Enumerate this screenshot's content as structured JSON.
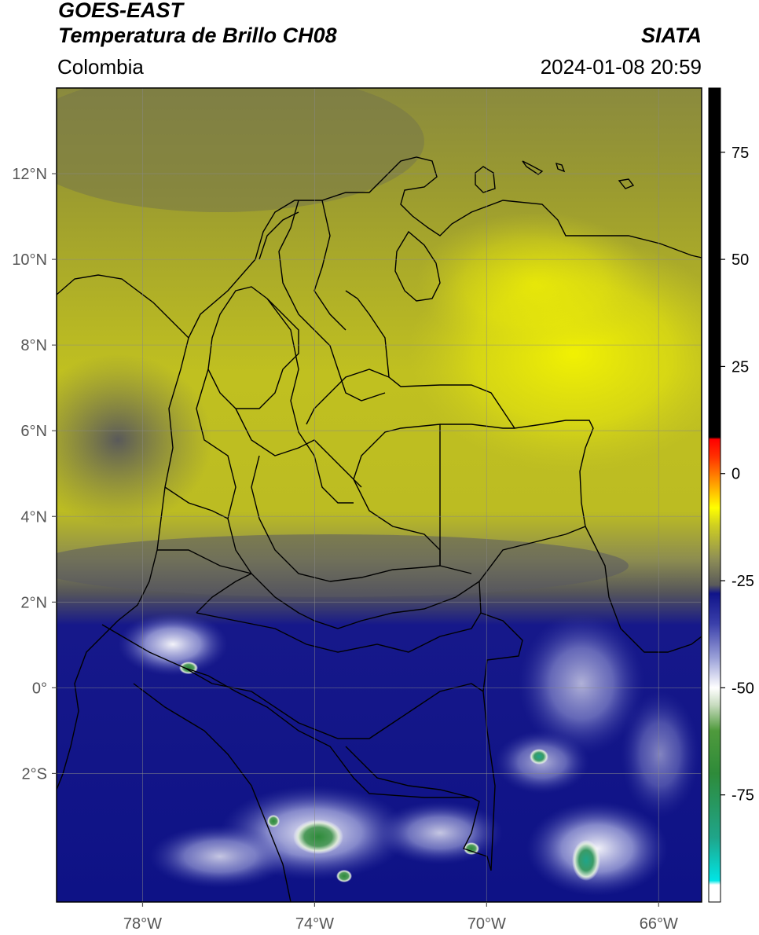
{
  "header": {
    "title_line1": "GOES-EAST",
    "title_line2": "Temperatura de Brillo CH08",
    "organization": "SIATA",
    "region": "Colombia",
    "datetime": "2024-01-08 20:59"
  },
  "map": {
    "lon_range": [
      -80,
      -65
    ],
    "lat_range": [
      -5,
      14
    ],
    "lat_ticks": [
      {
        "value": 12,
        "label": "12°N"
      },
      {
        "value": 10,
        "label": "10°N"
      },
      {
        "value": 8,
        "label": "8°N"
      },
      {
        "value": 6,
        "label": "6°N"
      },
      {
        "value": 4,
        "label": "4°N"
      },
      {
        "value": 2,
        "label": "2°N"
      },
      {
        "value": 0,
        "label": "0°"
      },
      {
        "value": -2,
        "label": "2°S"
      }
    ],
    "lon_ticks": [
      {
        "value": -78,
        "label": "78°W"
      },
      {
        "value": -74,
        "label": "74°W"
      },
      {
        "value": -70,
        "label": "70°W"
      },
      {
        "value": -66,
        "label": "66°W"
      }
    ],
    "grid": true
  },
  "colorbar": {
    "range": [
      -100,
      90
    ],
    "ticks": [
      {
        "value": 75,
        "label": "75"
      },
      {
        "value": 50,
        "label": "50"
      },
      {
        "value": 25,
        "label": "25"
      },
      {
        "value": 0,
        "label": "0"
      },
      {
        "value": -25,
        "label": "-25"
      },
      {
        "value": -50,
        "label": "-50"
      },
      {
        "value": -75,
        "label": "-75"
      }
    ],
    "stops": [
      {
        "value": -100,
        "color": "#ffffff"
      },
      {
        "value": -96,
        "color": "#ffffff"
      },
      {
        "value": -95,
        "color": "#00e5e5"
      },
      {
        "value": -85,
        "color": "#1fa58a"
      },
      {
        "value": -70,
        "color": "#2e8b3a"
      },
      {
        "value": -60,
        "color": "#4f9a3c"
      },
      {
        "value": -54,
        "color": "#c8dcc0"
      },
      {
        "value": -50,
        "color": "#ffffff"
      },
      {
        "value": -43,
        "color": "#9aa0d8"
      },
      {
        "value": -35,
        "color": "#3a3faa"
      },
      {
        "value": -28,
        "color": "#10148a"
      },
      {
        "value": -26,
        "color": "#5a5a5a"
      },
      {
        "value": -20,
        "color": "#8e8e56"
      },
      {
        "value": -12,
        "color": "#d0d020"
      },
      {
        "value": -8,
        "color": "#ffff00"
      },
      {
        "value": -3,
        "color": "#ffaa00"
      },
      {
        "value": 4,
        "color": "#ff3000"
      },
      {
        "value": 8,
        "color": "#ff0000"
      },
      {
        "value": 8.5,
        "color": "#000000"
      },
      {
        "value": 90,
        "color": "#000000"
      }
    ]
  }
}
